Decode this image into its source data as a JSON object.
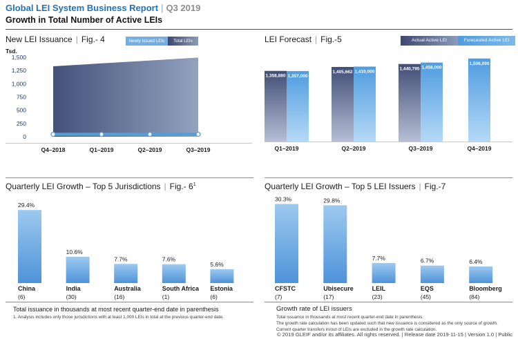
{
  "header": {
    "title": "Global LEI System Business Report",
    "pipe": "|",
    "period": "Q3 2019",
    "subtitle": "Growth in Total Number of Active LEIs"
  },
  "colors": {
    "accent_blue": "#2173b8",
    "light_blue_line": "#5b9bd5",
    "area_gradient_left": "#45517b",
    "area_gradient_right": "#93a2be",
    "actual_bar_top": "#434e77",
    "actual_bar_bottom": "#b6bed4",
    "forecast_bar_top": "#4f9ce0",
    "forecast_bar_bottom": "#b5d9f6",
    "growth_bar_top": "#9dc9ef",
    "growth_bar_bottom": "#4e93d9",
    "tick_navy": "#1f3864",
    "axis_gray": "#c9c9c9"
  },
  "chart_data": [
    {
      "id": "fig4",
      "type": "area",
      "title": "New LEI Issuance",
      "fig_label": "Fig.- 4",
      "y_unit": "Tsd.",
      "categories": [
        "Q4–2018",
        "Q1–2019",
        "Q2–2019",
        "Q3–2019"
      ],
      "series": [
        {
          "name": "Newly Issued LEIs",
          "style": "line",
          "values": [
            45,
            45,
            45,
            45
          ]
        },
        {
          "name": "Total LEIs",
          "style": "area",
          "values": [
            1330,
            1385,
            1440,
            1495
          ]
        }
      ],
      "ylim": [
        0,
        1500
      ],
      "yticks": [
        0,
        250,
        500,
        750,
        1000,
        1250,
        1500
      ],
      "ytick_labels": [
        "0",
        "250",
        "500",
        "750",
        "1,000",
        "1,250",
        "1,500"
      ],
      "grid": false,
      "legend_position": "top-right"
    },
    {
      "id": "fig5",
      "type": "bar",
      "title": "LEI Forecast",
      "fig_label": "Fig.-5",
      "categories": [
        "Q1–2019",
        "Q2–2019",
        "Q3–2019",
        "Q4–2019"
      ],
      "series": [
        {
          "name": "Actual Active LEI",
          "values": [
            1358880,
            1405662,
            1440795,
            null
          ]
        },
        {
          "name": "Forecasted Active LEI",
          "values": [
            1357000,
            1410000,
            1458000,
            1506000
          ]
        }
      ],
      "value_labels": [
        [
          "1,358,880",
          "1,405,662",
          "1,440,795",
          null
        ],
        [
          "1,357,000",
          "1,410,000",
          "1,458,000",
          "1,506,000"
        ]
      ],
      "legend_position": "top-right"
    },
    {
      "id": "fig6",
      "type": "bar",
      "title": "Quarterly LEI Growth – Top 5 Jurisdictions",
      "fig_label": "Fig.- 6",
      "fig_superscript": "1",
      "categories": [
        "China",
        "India",
        "Australia",
        "South Africa",
        "Estonia"
      ],
      "category_counts": [
        "(6)",
        "(30)",
        "(16)",
        "(1)",
        "(6)"
      ],
      "values": [
        29.4,
        10.6,
        7.7,
        7.6,
        5.6
      ],
      "value_labels": [
        "29.4%",
        "10.6%",
        "7.7%",
        "7.6%",
        "5.6%"
      ]
    },
    {
      "id": "fig7",
      "type": "bar",
      "title": "Quarterly LEI Growth – Top 5 LEI Issuers",
      "fig_label": "Fig.-7",
      "categories": [
        "CFSTC",
        "Ubisecure",
        "LEIL",
        "EQS",
        "Bloomberg"
      ],
      "category_counts": [
        "(7)",
        "(17)",
        "(23)",
        "(45)",
        "(84)"
      ],
      "values": [
        30.3,
        29.8,
        7.7,
        6.7,
        6.4
      ],
      "value_labels": [
        "30.3%",
        "29.8%",
        "7.7%",
        "6.7%",
        "6.4%"
      ]
    }
  ],
  "panels": {
    "fig4": {
      "pipe": "|"
    },
    "fig5": {
      "pipe": "|"
    },
    "fig6": {
      "pipe": "|",
      "note": "Total issuance in thousands at most recent quarter-end date in parenthesis",
      "footnote": "1. Analysis includes only those jurisdictions with at least 1,000 LEIs in total at the previous quarter-end date."
    },
    "fig7": {
      "pipe": "|",
      "notes_heading": "Growth rate of LEI issuers",
      "note1": "Total issuance in thousands at most recent quarter-end date in parenthesis.",
      "note2": "The growth rate calculation has been updated such that new issuance is considered as the only source of growth. Current quarter transfers in/out of LEIs are excluded in the growth rate calculation."
    }
  },
  "footer": {
    "copyright": "© 2019 GLEIF and/or its affiliates. All rights reserved.  |  Release date 2019-11-15  |  Version 1.0  |  Public"
  }
}
